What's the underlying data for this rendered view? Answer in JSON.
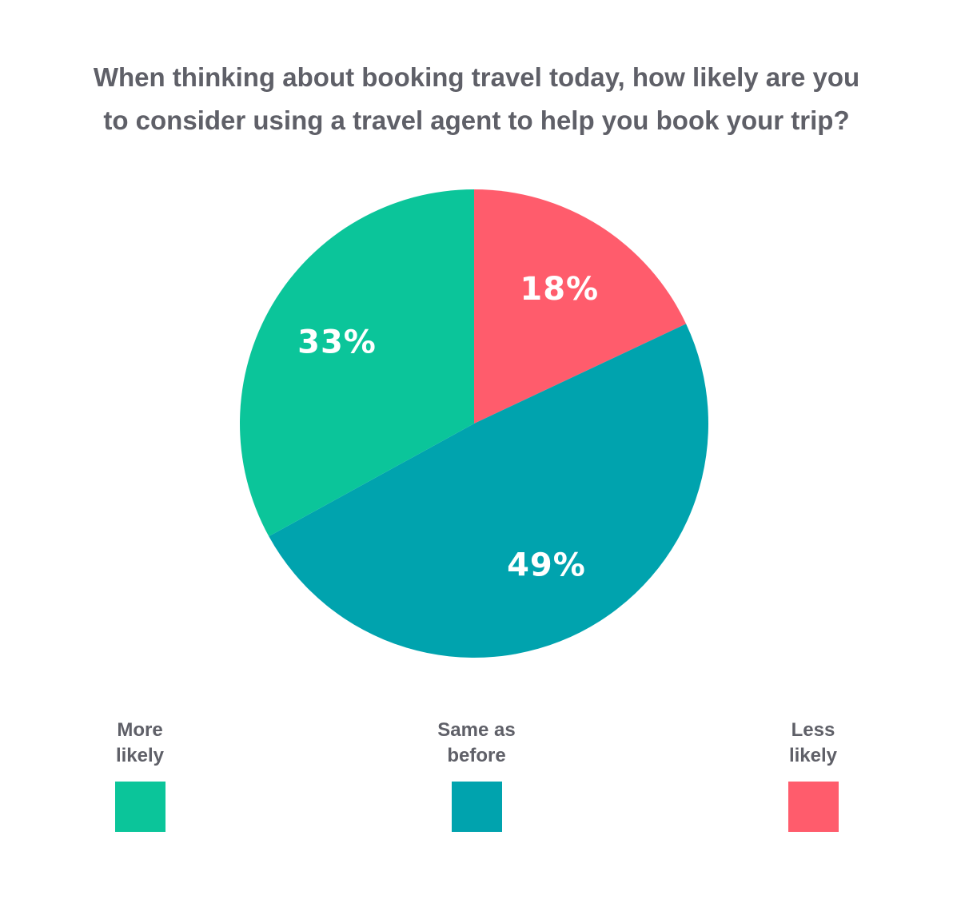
{
  "title": {
    "line1": "When thinking about booking travel today, how likely are you",
    "line2": "to consider using a travel agent to help you book your trip?"
  },
  "chart_data": {
    "type": "pie",
    "title": "When thinking about booking travel today, how likely are you to consider using a travel agent to help you book your trip?",
    "slices": [
      {
        "name": "Less likely",
        "value": 18,
        "label": "18%",
        "color": "#ff5c6c"
      },
      {
        "name": "Same as before",
        "value": 49,
        "label": "49%",
        "color": "#00a3ae"
      },
      {
        "name": "More likely",
        "value": 33,
        "label": "33%",
        "color": "#0bc59a"
      }
    ],
    "start": "12 o'clock",
    "direction": "clockwise",
    "legend_placement": "bottom"
  },
  "legend": [
    {
      "line1": "More",
      "line2": "likely",
      "color": "#0bc59a"
    },
    {
      "line1": "Same as",
      "line2": "before",
      "color": "#00a3ae"
    },
    {
      "line1": "Less",
      "line2": "likely",
      "color": "#ff5c6c"
    }
  ]
}
